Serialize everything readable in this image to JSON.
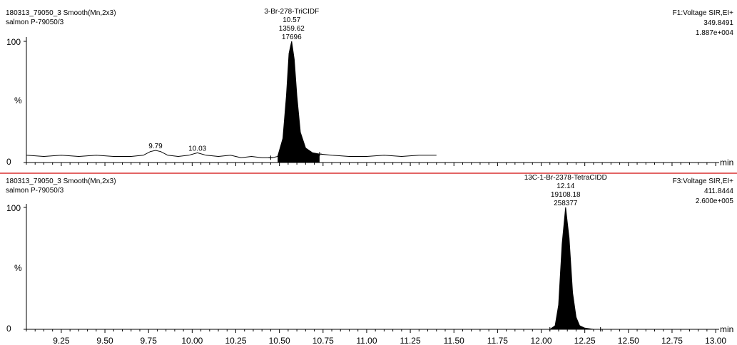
{
  "chart_data": [
    {
      "type": "line",
      "header_left": [
        "180313_79050_3 Smooth(Mn,2x3)",
        "salmon P-79050/3"
      ],
      "header_right": [
        "F1:Voltage SIR,EI+",
        "349.8491",
        "1.887e+004"
      ],
      "ylabel": "%",
      "xlabel": "min",
      "ylim": [
        0,
        100
      ],
      "yticks": [
        "0",
        "100"
      ],
      "xlim": [
        9.05,
        13.02
      ],
      "series": [
        {
          "x": [
            9.05,
            9.15,
            9.25,
            9.35,
            9.45,
            9.55,
            9.65,
            9.72,
            9.76,
            9.79,
            9.82,
            9.86,
            9.92,
            9.98,
            10.03,
            10.08,
            10.15,
            10.22,
            10.28,
            10.34,
            10.4,
            10.46,
            10.49,
            10.52,
            10.54,
            10.555,
            10.57,
            10.585,
            10.6,
            10.62,
            10.65,
            10.69,
            10.73,
            10.8,
            10.9,
            11.0,
            11.1,
            11.2,
            11.3,
            11.4
          ],
          "y": [
            6,
            5,
            6,
            5,
            6,
            5,
            5,
            6,
            9,
            10,
            9,
            6,
            5,
            6,
            8,
            6,
            5,
            6,
            4,
            5,
            4,
            4,
            5,
            20,
            55,
            90,
            100,
            85,
            55,
            25,
            12,
            8,
            7,
            6,
            5,
            5,
            6,
            5,
            6,
            6
          ]
        }
      ],
      "annotations": [
        {
          "x": 9.79,
          "y": 10,
          "lines": [
            "9.79"
          ]
        },
        {
          "x": 10.03,
          "y": 8,
          "lines": [
            "10.03"
          ]
        },
        {
          "x": 10.57,
          "y": 100,
          "lines": [
            "3-Br-278-TriCIDF",
            "10.57",
            "1359.62",
            "17696"
          ]
        }
      ],
      "peak_fill_range": [
        10.49,
        10.73
      ],
      "peak_marks": [
        10.45,
        10.73
      ]
    },
    {
      "type": "line",
      "header_left": [
        "180313_79050_3 Smooth(Mn,2x3)",
        "salmon P-79050/3"
      ],
      "header_right": [
        "F3:Voltage SIR,EI+",
        "411.8444",
        "2.600e+005"
      ],
      "ylabel": "%",
      "xlabel": "min",
      "ylim": [
        0,
        100
      ],
      "yticks": [
        "0",
        "100"
      ],
      "xlim": [
        9.05,
        13.02
      ],
      "xticks": [
        "9.25",
        "9.50",
        "9.75",
        "10.00",
        "10.25",
        "10.50",
        "10.75",
        "11.00",
        "11.25",
        "11.50",
        "11.75",
        "12.00",
        "12.25",
        "12.50",
        "12.75",
        "13.00"
      ],
      "series": [
        {
          "x": [
            11.91,
            12.0,
            12.05,
            12.08,
            12.1,
            12.12,
            12.14,
            12.16,
            12.18,
            12.2,
            12.22,
            12.25,
            12.3,
            12.34
          ],
          "y": [
            0,
            0,
            0,
            3,
            20,
            70,
            100,
            75,
            30,
            10,
            3,
            1,
            0,
            0
          ]
        }
      ],
      "annotations": [
        {
          "x": 12.14,
          "y": 100,
          "lines": [
            "13C-1-Br-2378-TetraCIDD",
            "12.14",
            "19108.18",
            "258377"
          ]
        }
      ],
      "peak_fill_range": [
        12.05,
        12.34
      ],
      "peak_marks": [
        12.05,
        12.34
      ]
    }
  ]
}
